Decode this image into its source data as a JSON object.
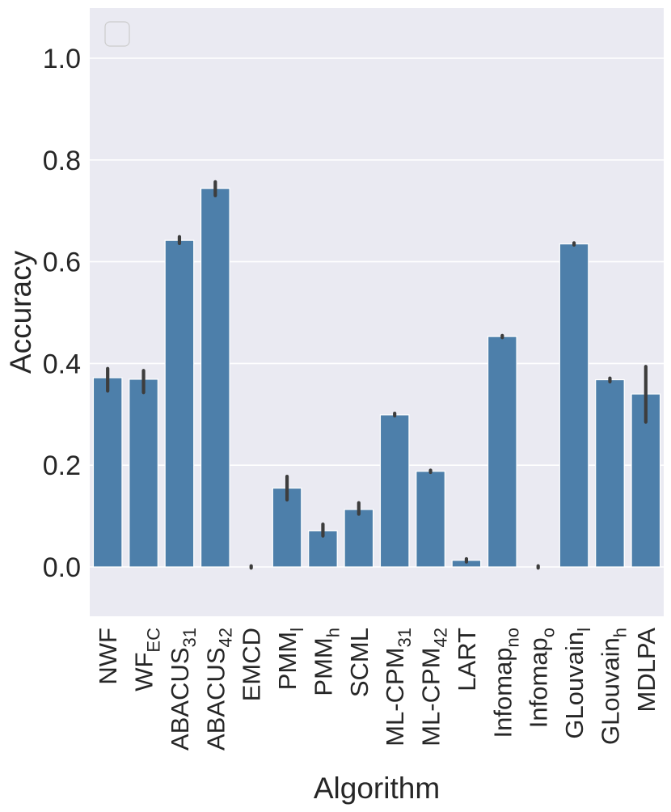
{
  "chart_data": {
    "type": "bar",
    "xlabel": "Algorithm",
    "ylabel": "Accuracy",
    "ylim": [
      -0.1,
      1.1
    ],
    "yticks": [
      "0.0",
      "0.2",
      "0.4",
      "0.6",
      "0.8",
      "1.0"
    ],
    "grid": true,
    "legend": "top-left (empty)",
    "bar_color": "#4d7faa",
    "background_color": "#eaeaf2",
    "categories": [
      {
        "base": "NWF",
        "sub": ""
      },
      {
        "base": "WF",
        "sub": "EC"
      },
      {
        "base": "ABACUS",
        "sub": "31"
      },
      {
        "base": "ABACUS",
        "sub": "42"
      },
      {
        "base": "EMCD",
        "sub": ""
      },
      {
        "base": "PMM",
        "sub": "l"
      },
      {
        "base": "PMM",
        "sub": "h"
      },
      {
        "base": "SCML",
        "sub": ""
      },
      {
        "base": "ML-CPM",
        "sub": "31"
      },
      {
        "base": "ML-CPM",
        "sub": "42"
      },
      {
        "base": "LART",
        "sub": ""
      },
      {
        "base": "Infomap",
        "sub": "no"
      },
      {
        "base": "Infomap",
        "sub": "o"
      },
      {
        "base": "GLouvain",
        "sub": "l"
      },
      {
        "base": "GLouvain",
        "sub": "h"
      },
      {
        "base": "MDLPA",
        "sub": ""
      }
    ],
    "values": [
      0.372,
      0.369,
      0.642,
      0.744,
      0.0,
      0.155,
      0.071,
      0.113,
      0.299,
      0.188,
      0.013,
      0.453,
      0.0,
      0.635,
      0.368,
      0.34
    ],
    "error_low": [
      0.346,
      0.343,
      0.636,
      0.73,
      -0.002,
      0.132,
      0.061,
      0.104,
      0.297,
      0.186,
      0.01,
      0.451,
      -0.002,
      0.633,
      0.364,
      0.285
    ],
    "error_high": [
      0.39,
      0.386,
      0.649,
      0.757,
      0.002,
      0.178,
      0.084,
      0.126,
      0.302,
      0.19,
      0.016,
      0.455,
      0.002,
      0.637,
      0.371,
      0.394
    ]
  }
}
